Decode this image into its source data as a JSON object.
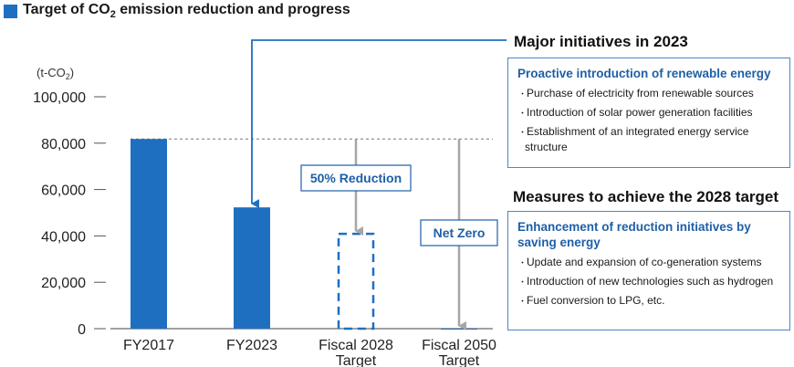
{
  "title": {
    "text": "Target of CO",
    "sub": "2",
    "rest": " emission reduction and progress"
  },
  "colors": {
    "bar": "#1f6fc1",
    "arrow": "#a6a6a6",
    "accent": "#1f5fa8",
    "box_border": "#4d86c4"
  },
  "chart_data": {
    "type": "bar",
    "unit_label": "(t-CO2)",
    "categories": [
      "FY2017",
      "FY2023",
      "Fiscal 2028\nTarget",
      "Fiscal 2050\nTarget"
    ],
    "values": [
      81800,
      52300,
      40900,
      0
    ],
    "bar_styles": [
      "solid",
      "solid",
      "dashed",
      "solid"
    ],
    "ylim": [
      0,
      100000
    ],
    "yticks": [
      0,
      20000,
      40000,
      60000,
      80000,
      100000
    ],
    "ytick_labels": [
      "0",
      "20,000",
      "40,000",
      "60,000",
      "80,000",
      "100,000"
    ],
    "reference_line": 81800,
    "annotations": [
      {
        "category": "Fiscal 2028\nTarget",
        "text": "50% Reduction"
      },
      {
        "category": "Fiscal 2050\nTarget",
        "text": "Net Zero"
      }
    ]
  },
  "major_initiatives": {
    "heading": "Major initiatives in 2023",
    "box_title": "Proactive introduction of renewable energy",
    "items": [
      "Purchase of electricity from renewable sources",
      "Introduction of solar power generation facilities",
      "Establishment of an integrated energy service structure"
    ]
  },
  "measures_2028": {
    "heading": "Measures to achieve the 2028 target",
    "box_title": "Enhancement of reduction initiatives by saving energy",
    "items": [
      "Update and expansion of co-generation systems",
      "Introduction of new technologies such as hydrogen",
      "Fuel conversion to LPG, etc."
    ]
  }
}
